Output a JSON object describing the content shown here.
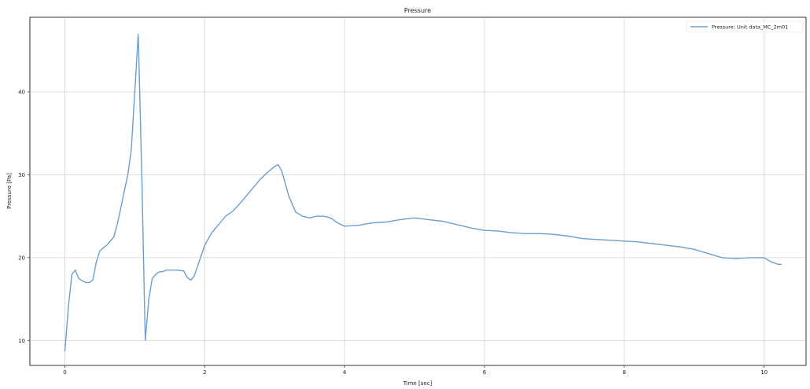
{
  "chart_data": {
    "type": "line",
    "title": "Pressure",
    "xlabel": "Time [sec]",
    "ylabel": "Pressure [Pa]",
    "xlim": [
      -0.5,
      10.6
    ],
    "ylim": [
      7,
      49
    ],
    "grid": true,
    "legend_position": "top-right",
    "x_ticks": [
      0,
      2,
      4,
      6,
      8,
      10
    ],
    "y_ticks": [
      10,
      20,
      30,
      40
    ],
    "series": [
      {
        "name": "Pressure: Unit data_MC_2m01",
        "color": "#6a9fcf",
        "x": [
          0.0,
          0.05,
          0.1,
          0.15,
          0.2,
          0.25,
          0.3,
          0.35,
          0.4,
          0.45,
          0.5,
          0.55,
          0.6,
          0.7,
          0.75,
          0.8,
          0.85,
          0.9,
          0.95,
          1.0,
          1.05,
          1.1,
          1.15,
          1.2,
          1.25,
          1.3,
          1.35,
          1.4,
          1.45,
          1.5,
          1.6,
          1.7,
          1.75,
          1.8,
          1.85,
          1.9,
          2.0,
          2.1,
          2.2,
          2.3,
          2.4,
          2.5,
          2.6,
          2.7,
          2.8,
          2.9,
          3.0,
          3.05,
          3.1,
          3.15,
          3.2,
          3.25,
          3.3,
          3.4,
          3.5,
          3.6,
          3.7,
          3.8,
          3.9,
          4.0,
          4.2,
          4.4,
          4.6,
          4.8,
          5.0,
          5.2,
          5.4,
          5.6,
          5.8,
          6.0,
          6.2,
          6.4,
          6.6,
          6.8,
          7.0,
          7.2,
          7.4,
          7.6,
          7.8,
          8.0,
          8.2,
          8.4,
          8.6,
          8.8,
          9.0,
          9.2,
          9.4,
          9.6,
          9.8,
          10.0,
          10.1,
          10.2,
          10.25
        ],
        "y": [
          8.7,
          14.0,
          18.0,
          18.5,
          17.5,
          17.2,
          17.0,
          17.0,
          17.3,
          19.5,
          20.8,
          21.2,
          21.5,
          22.5,
          24.0,
          26.0,
          28.0,
          30.0,
          33.0,
          40.0,
          47.0,
          30.0,
          10.0,
          15.0,
          17.5,
          18.0,
          18.3,
          18.3,
          18.5,
          18.5,
          18.5,
          18.4,
          17.6,
          17.3,
          17.8,
          19.0,
          21.5,
          23.0,
          24.0,
          25.0,
          25.6,
          26.5,
          27.5,
          28.5,
          29.5,
          30.3,
          31.0,
          31.2,
          30.5,
          29.0,
          27.5,
          26.5,
          25.5,
          25.0,
          24.8,
          25.0,
          25.0,
          24.8,
          24.2,
          23.8,
          23.9,
          24.2,
          24.3,
          24.6,
          24.8,
          24.6,
          24.4,
          24.0,
          23.6,
          23.3,
          23.2,
          23.0,
          22.9,
          22.9,
          22.8,
          22.6,
          22.3,
          22.2,
          22.1,
          22.0,
          21.9,
          21.7,
          21.5,
          21.3,
          21.0,
          20.5,
          20.0,
          19.9,
          20.0,
          20.0,
          19.5,
          19.2,
          19.2
        ]
      }
    ]
  }
}
